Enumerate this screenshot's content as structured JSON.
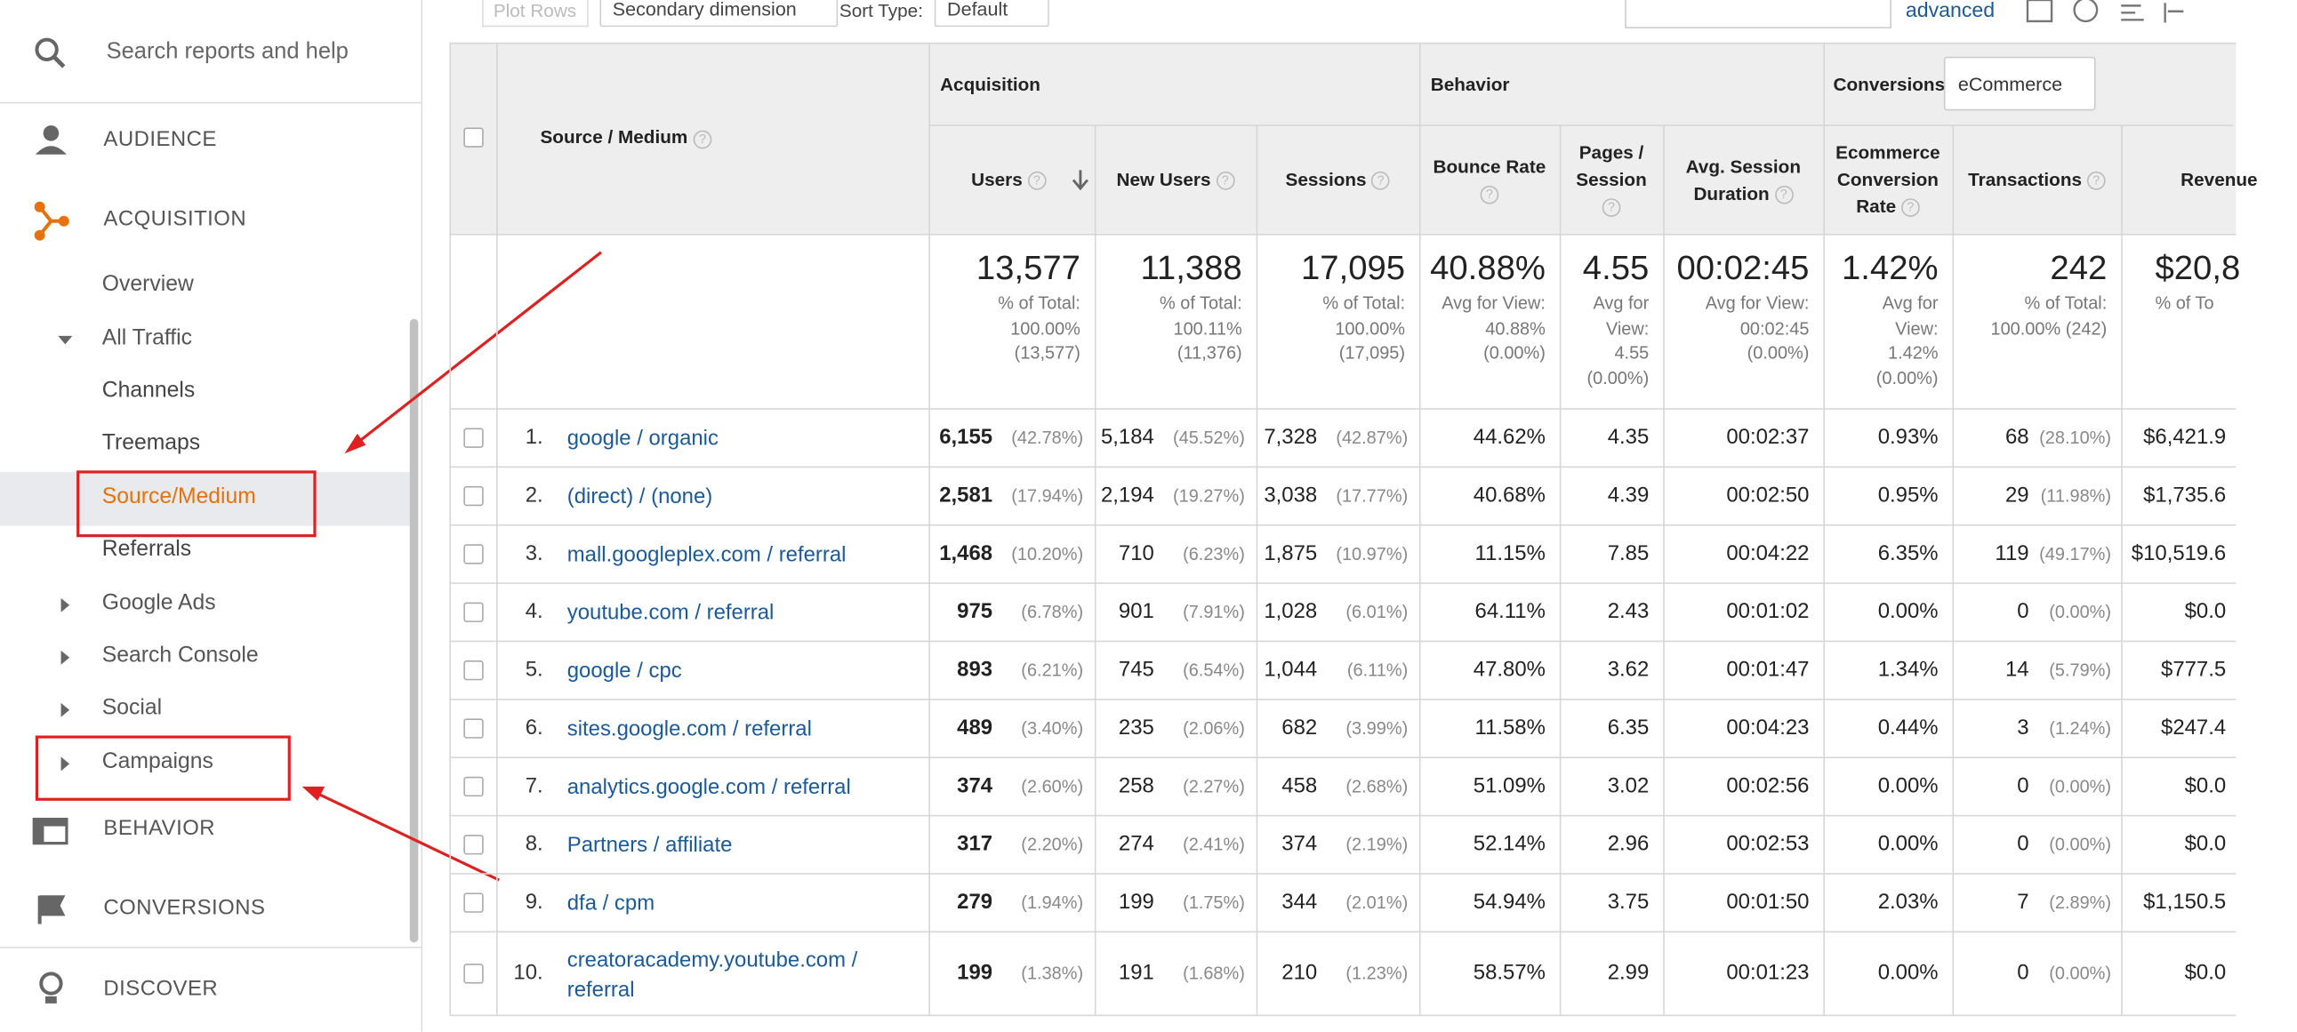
{
  "sidebar": {
    "search": "Search reports and help",
    "items": [
      "AUDIENCE",
      "ACQUISITION",
      "Overview",
      "All Traffic",
      "Channels",
      "Treemaps",
      "Source/Medium",
      "Referrals",
      "Google Ads",
      "Search Console",
      "Social",
      "Campaigns",
      "BEHAVIOR",
      "CONVERSIONS",
      "DISCOVER"
    ]
  },
  "toolbar": {
    "plot_rows": "Plot Rows",
    "secondary_dimension": "Secondary dimension",
    "sort_type": "Sort Type:",
    "sort_value": "Default",
    "advanced": "advanced"
  },
  "table": {
    "dimension": "Source / Medium",
    "groups": [
      "Acquisition",
      "Behavior",
      "Conversions"
    ],
    "conversion_select": "eCommerce",
    "columns": [
      "Users",
      "New Users",
      "Sessions",
      "Bounce Rate",
      "Pages / Session",
      "Avg. Session Duration",
      "Ecommerce Conversion Rate",
      "Transactions",
      "Revenue"
    ],
    "totals": [
      {
        "value": "13,577",
        "note": "% of Total: 100.00% (13,577)"
      },
      {
        "value": "11,388",
        "note": "% of Total: 100.11% (11,376)"
      },
      {
        "value": "17,095",
        "note": "% of Total: 100.00% (17,095)"
      },
      {
        "value": "40.88%",
        "note": "Avg for View: 40.88% (0.00%)"
      },
      {
        "value": "4.55",
        "note": "Avg for View: 4.55 (0.00%)"
      },
      {
        "value": "00:02:45",
        "note": "Avg for View: 00:02:45 (0.00%)"
      },
      {
        "value": "1.42%",
        "note": "Avg for View: 1.42% (0.00%)"
      },
      {
        "value": "242",
        "note": "% of Total: 100.00% (242)"
      },
      {
        "value": "$20,8",
        "note": "% of To"
      }
    ],
    "rows": [
      [
        "1.",
        "google / organic",
        "6,155",
        "(42.78%)",
        "5,184",
        "(45.52%)",
        "7,328",
        "(42.87%)",
        "44.62%",
        "4.35",
        "00:02:37",
        "0.93%",
        "68",
        "(28.10%)",
        "$6,421.9"
      ],
      [
        "2.",
        "(direct) / (none)",
        "2,581",
        "(17.94%)",
        "2,194",
        "(19.27%)",
        "3,038",
        "(17.77%)",
        "40.68%",
        "4.39",
        "00:02:50",
        "0.95%",
        "29",
        "(11.98%)",
        "$1,735.6"
      ],
      [
        "3.",
        "mall.googleplex.com / referral",
        "1,468",
        "(10.20%)",
        "710",
        "(6.23%)",
        "1,875",
        "(10.97%)",
        "11.15%",
        "7.85",
        "00:04:22",
        "6.35%",
        "119",
        "(49.17%)",
        "$10,519.6"
      ],
      [
        "4.",
        "youtube.com / referral",
        "975",
        "(6.78%)",
        "901",
        "(7.91%)",
        "1,028",
        "(6.01%)",
        "64.11%",
        "2.43",
        "00:01:02",
        "0.00%",
        "0",
        "(0.00%)",
        "$0.0"
      ],
      [
        "5.",
        "google / cpc",
        "893",
        "(6.21%)",
        "745",
        "(6.54%)",
        "1,044",
        "(6.11%)",
        "47.80%",
        "3.62",
        "00:01:47",
        "1.34%",
        "14",
        "(5.79%)",
        "$777.5"
      ],
      [
        "6.",
        "sites.google.com / referral",
        "489",
        "(3.40%)",
        "235",
        "(2.06%)",
        "682",
        "(3.99%)",
        "11.58%",
        "6.35",
        "00:04:23",
        "0.44%",
        "3",
        "(1.24%)",
        "$247.4"
      ],
      [
        "7.",
        "analytics.google.com / referral",
        "374",
        "(2.60%)",
        "258",
        "(2.27%)",
        "458",
        "(2.68%)",
        "51.09%",
        "3.02",
        "00:02:56",
        "0.00%",
        "0",
        "(0.00%)",
        "$0.0"
      ],
      [
        "8.",
        "Partners / affiliate",
        "317",
        "(2.20%)",
        "274",
        "(2.41%)",
        "374",
        "(2.19%)",
        "52.14%",
        "2.96",
        "00:02:53",
        "0.00%",
        "0",
        "(0.00%)",
        "$0.0"
      ],
      [
        "9.",
        "dfa / cpm",
        "279",
        "(1.94%)",
        "199",
        "(1.75%)",
        "344",
        "(2.01%)",
        "54.94%",
        "3.75",
        "00:01:50",
        "2.03%",
        "7",
        "(2.89%)",
        "$1,150.5"
      ],
      [
        "10.",
        "creatoracademy.youtube.com / referral",
        "199",
        "(1.38%)",
        "191",
        "(1.68%)",
        "210",
        "(1.23%)",
        "58.57%",
        "2.99",
        "00:01:23",
        "0.00%",
        "0",
        "(0.00%)",
        "$0.0"
      ]
    ]
  }
}
